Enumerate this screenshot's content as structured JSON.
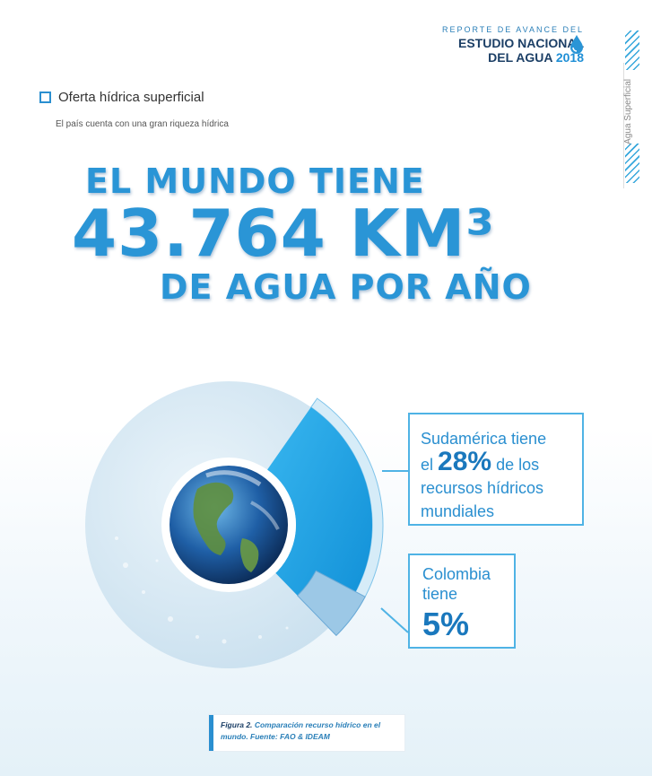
{
  "header": {
    "small": "REPORTE DE AVANCE DEL",
    "line1": "ESTUDIO NACIONAL",
    "line2a": "DEL AGUA",
    "line2b": "2018"
  },
  "side_label": "Agua Superficial",
  "section": {
    "title": "Oferta hídrica superficial",
    "subtitle": "El país cuenta con una gran riqueza hídrica"
  },
  "headline": {
    "line1": "EL MUNDO TIENE",
    "line2": "43.764 KM³",
    "line3": "DE AGUA POR AÑO"
  },
  "chart_data": {
    "type": "pie",
    "slices": [
      {
        "label": "Sudamérica",
        "value": 28
      },
      {
        "label": "Colombia",
        "value": 5
      }
    ],
    "colors": {
      "world": "#d3e6f3",
      "sudamerica": "#1aa3e8",
      "colombia": "#9cc8e6",
      "ring": "#bfe0f3"
    }
  },
  "callouts": {
    "sudamerica": {
      "pre": "Sudamérica tiene",
      "el": "el",
      "pct": "28%",
      "post1": "de los",
      "post2": "recursos hídricos",
      "post3": "mundiales"
    },
    "colombia": {
      "l1": "Colombia",
      "l2": "tiene",
      "pct": "5%"
    }
  },
  "caption": {
    "fig": "Figura 2.",
    "text": "Comparación recurso hídrico en el mundo. Fuente: FAO & IDEAM"
  },
  "icons": {
    "drop": "water-drop-icon",
    "globe": "earth-globe-icon",
    "checkbox": "square-bullet-icon"
  }
}
